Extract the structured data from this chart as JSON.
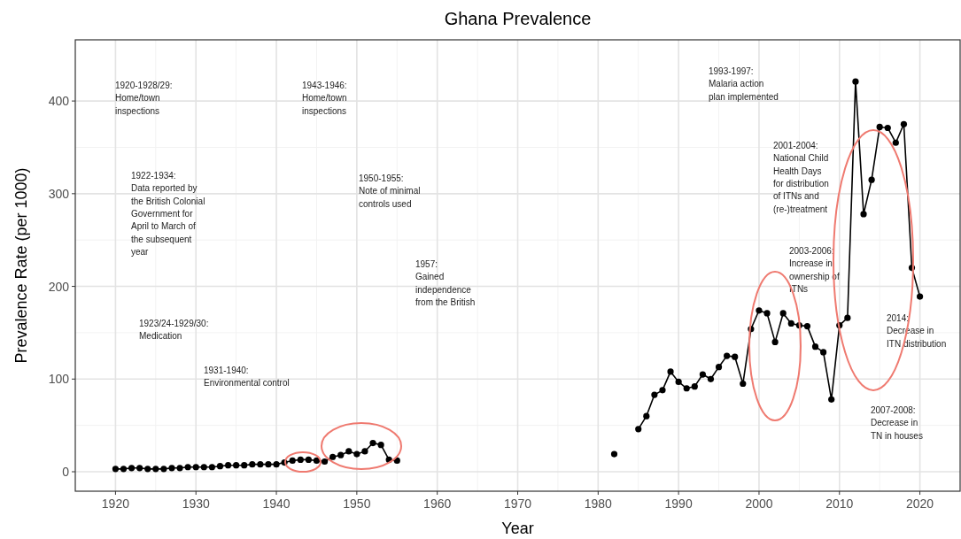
{
  "chart_data": {
    "type": "line",
    "title": "Ghana Prevalence",
    "xlabel": "Year",
    "ylabel": "Prevalence Rate (per 1000)",
    "x": [
      1920,
      1921,
      1922,
      1923,
      1924,
      1925,
      1926,
      1927,
      1928,
      1929,
      1930,
      1931,
      1932,
      1933,
      1934,
      1935,
      1936,
      1937,
      1938,
      1939,
      1940,
      1941,
      1942,
      1943,
      1944,
      1945,
      1946,
      1947,
      1948,
      1949,
      1950,
      1951,
      1952,
      1953,
      1954,
      1955,
      1956,
      1982,
      1983,
      1985,
      1986,
      1987,
      1988,
      1989,
      1990,
      1991,
      1992,
      1993,
      1994,
      1995,
      1996,
      1997,
      1998,
      1999,
      2000,
      2001,
      2002,
      2003,
      2004,
      2005,
      2006,
      2007,
      2008,
      2009,
      2010,
      2011,
      2012,
      2013,
      2014,
      2015,
      2016,
      2017,
      2018,
      2019,
      2020
    ],
    "series": [
      {
        "color": "#000000",
        "values": [
          3,
          3,
          4,
          4,
          3,
          3,
          3,
          4,
          4,
          5,
          5,
          5,
          5,
          6,
          7,
          7,
          7,
          8,
          8,
          8,
          8,
          10,
          12,
          13,
          13,
          12,
          11,
          16,
          18,
          22,
          19,
          22,
          31,
          29,
          13,
          12,
          null,
          19,
          null,
          46,
          60,
          83,
          88,
          108,
          97,
          90,
          92,
          105,
          100,
          113,
          125,
          124,
          95,
          154,
          174,
          171,
          140,
          171,
          160,
          158,
          157,
          135,
          129,
          78,
          158,
          166,
          421,
          278,
          315,
          372,
          371,
          355,
          375,
          220,
          189
        ]
      }
    ],
    "xlim": [
      1915,
      2025
    ],
    "xticks": [
      1920,
      1930,
      1940,
      1950,
      1960,
      1970,
      1980,
      1990,
      2000,
      2010,
      2020
    ],
    "ylim": [
      -21,
      466
    ],
    "yticks": [
      0,
      100,
      200,
      300,
      400
    ],
    "grid": true,
    "marker": "circle",
    "line_style": "solid",
    "annotations": [
      "1920-1928/29:\nHome/town\ninspections",
      "1922-1934:\nData reported by\nthe British Colonial\nGovernment for\nApril to March of\nthe subsequent\nyear",
      "1923/24-1929/30:\nMedication",
      "1931-1940:\nEnvironmental control",
      "1943-1946:\nHome/town\ninspections",
      "1950-1955:\nNote of minimal\ncontrols used",
      "1957:\nGained\nindependence\nfrom the British",
      "1993-1997:\nMalaria action\nplan implemented",
      "2001-2004:\nNational Child\nHealth Days\nfor distribution\nof ITNs and\n(re-)treatment",
      "2003-2006:\nIncrease in\nownership of\nITNs",
      "2014:\nDecrease in\nITN distribution",
      "2007-2008:\nDecrease in\nTN in houses"
    ]
  }
}
